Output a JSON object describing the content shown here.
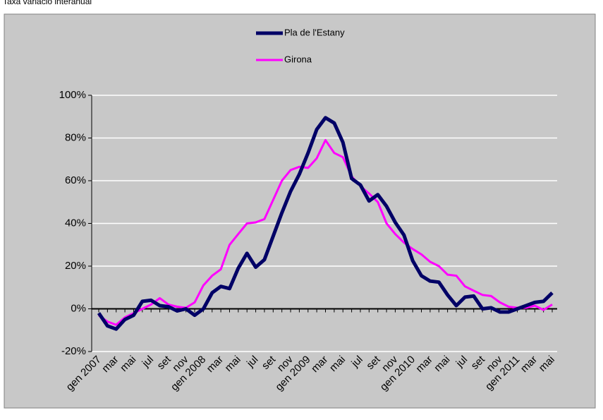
{
  "chart_data": {
    "type": "line",
    "title": "Taxa variació interanual",
    "categories": [
      "gen 2007",
      null,
      "mar",
      null,
      "mai",
      null,
      "jul",
      null,
      "set",
      null,
      "nov",
      null,
      "gen 2008",
      null,
      "mar",
      null,
      "mai",
      null,
      "jul",
      null,
      "set",
      null,
      "nov",
      null,
      "gen 2009",
      null,
      "mar",
      null,
      "mai",
      null,
      "jul",
      null,
      "set",
      null,
      "nov",
      null,
      "gen 2010",
      null,
      "mar",
      null,
      "mai",
      null,
      "jul",
      null,
      "set",
      null,
      "nov",
      null,
      "gen 2011",
      null,
      "mar",
      null,
      "mai"
    ],
    "series": [
      {
        "name": "Pla de l'Estany",
        "color": "#000066",
        "values": [
          -2,
          -8,
          -9.5,
          -5,
          -3,
          3.5,
          4,
          1.5,
          1,
          -1,
          0,
          -3,
          0,
          7.5,
          10.5,
          9.5,
          19,
          26,
          19.5,
          23,
          34,
          45,
          55,
          63,
          73,
          84,
          89.5,
          87,
          78,
          61,
          58,
          50.5,
          53.5,
          48,
          40.5,
          34.5,
          22.5,
          15.5,
          13,
          12.5,
          6.5,
          1.5,
          5.5,
          6,
          0,
          0.5,
          -1.5,
          -1.5,
          0,
          1.5,
          3,
          3.5,
          7.5
        ]
      },
      {
        "name": "Girona",
        "color": "#ff00ff",
        "values": [
          -3,
          -6,
          -7.5,
          -4,
          -2,
          0,
          2,
          5,
          2,
          1,
          0.5,
          3,
          11,
          15.5,
          18.5,
          30,
          35,
          40,
          40.5,
          42,
          51,
          60,
          65,
          66.5,
          66,
          70.5,
          79,
          73,
          71,
          62,
          57.5,
          54,
          50,
          40,
          35,
          31,
          28,
          25.5,
          22,
          20,
          16,
          15.5,
          10.5,
          8.5,
          6.5,
          6,
          3,
          1,
          0.5,
          0.5,
          1.5,
          -0.5,
          2
        ]
      }
    ],
    "ylim": [
      -20,
      100
    ],
    "yticks": [
      {
        "value": -20,
        "label": "-20%"
      },
      {
        "value": 0,
        "label": "0%"
      },
      {
        "value": 20,
        "label": "20%"
      },
      {
        "value": 40,
        "label": "40%"
      },
      {
        "value": 60,
        "label": "60%"
      },
      {
        "value": 80,
        "label": "80%"
      },
      {
        "value": 100,
        "label": "100%"
      }
    ],
    "grid": true
  }
}
